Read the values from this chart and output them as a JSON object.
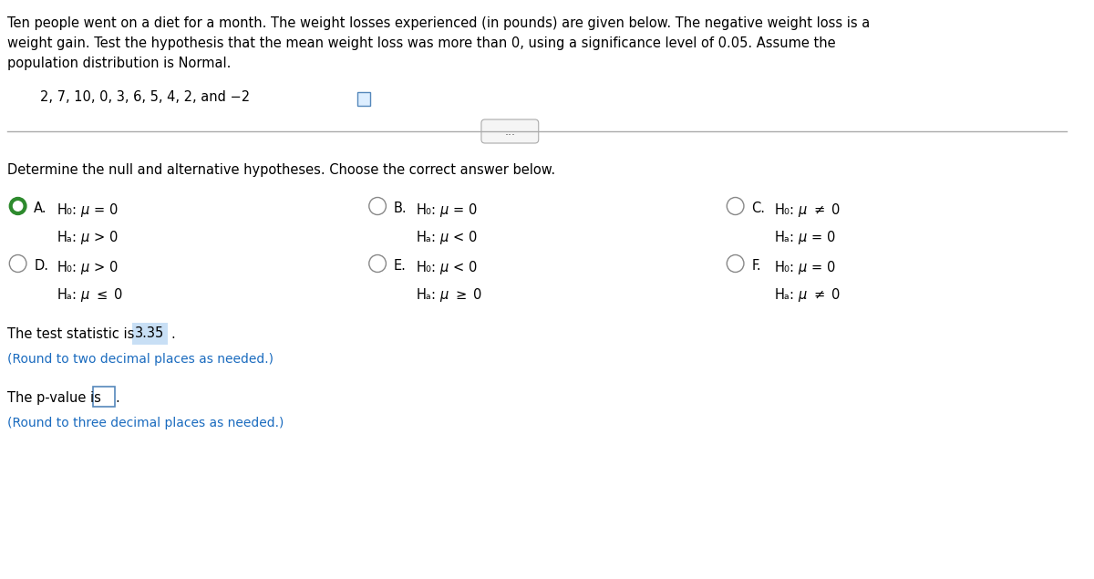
{
  "bg_color": "#ffffff",
  "text_color": "#000000",
  "blue_color": "#1a6bbf",
  "highlight_bg": "#c8dff5",
  "para1": "Ten people went on a diet for a month. The weight losses experienced (in pounds) are given below. The negative weight loss is a\nweight gain. Test the hypothesis that the mean weight loss was more than 0, using a significance level of 0.05. Assume the\npopulation distribution is Normal.",
  "data_line": "2, 7, 10, 0, 3, 6, 5, 4, 2, and −2",
  "section_label": "Determine the null and alternative hypotheses. Choose the correct answer below.",
  "options": [
    {
      "letter": "A",
      "h0": "H₀: μ = 0",
      "ha": "Hₐ: μ > 0",
      "selected": true
    },
    {
      "letter": "B",
      "h0": "H₀: μ = 0",
      "ha": "Hₐ: μ < 0",
      "selected": false
    },
    {
      "letter": "C",
      "h0": "H₀: μ ≠ 0",
      "ha": "Hₐ: μ = 0",
      "selected": false
    },
    {
      "letter": "D",
      "h0": "H₀: μ > 0",
      "ha": "Hₐ: μ ≤ 0",
      "selected": false
    },
    {
      "letter": "E",
      "h0": "H₀: μ < 0",
      "ha": "Hₐ: μ ≥ 0",
      "selected": false
    },
    {
      "letter": "F",
      "h0": "H₀: μ = 0",
      "ha": "Hₐ: μ ≠ 0",
      "selected": false
    }
  ],
  "test_stat_text": "The test statistic is ",
  "test_stat_value": "3.35",
  "test_stat_suffix": ".",
  "round2_text": "(Round to two decimal places as needed.)",
  "pvalue_text_pre": "The p-value is ",
  "pvalue_suffix": ".",
  "round3_text": "(Round to three decimal places as needed.)"
}
